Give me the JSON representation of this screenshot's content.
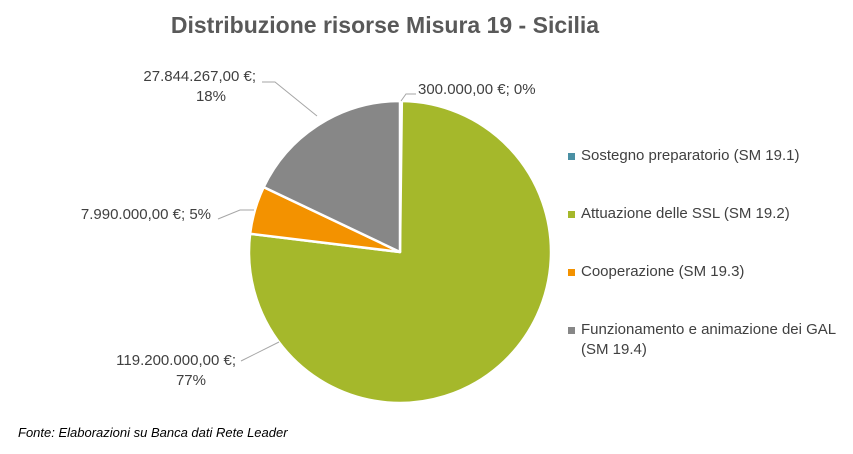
{
  "chart_data": {
    "type": "pie",
    "title": "Distribuzione risorse Misura 19 - Sicilia",
    "categories": [
      "Sostegno preparatorio (SM 19.1)",
      "Attuazione delle SSL (SM 19.2)",
      "Cooperazione (SM 19.3)",
      "Funzionamento e animazione dei GAL (SM 19.4)"
    ],
    "values": [
      300000,
      119200000,
      7990000,
      27844267
    ],
    "data_labels": [
      [
        "300.000,00 €; 0%"
      ],
      [
        "119.200.000,00 €;",
        "77%"
      ],
      [
        "7.990.000,00 €; 5%"
      ],
      [
        "27.844.267,00 €;",
        "18%"
      ]
    ],
    "colors": [
      "#4a90a4",
      "#a5b82b",
      "#f39200",
      "#878787"
    ],
    "legend_position": "right"
  },
  "source": "Fonte: Elaborazioni su Banca dati Rete Leader"
}
